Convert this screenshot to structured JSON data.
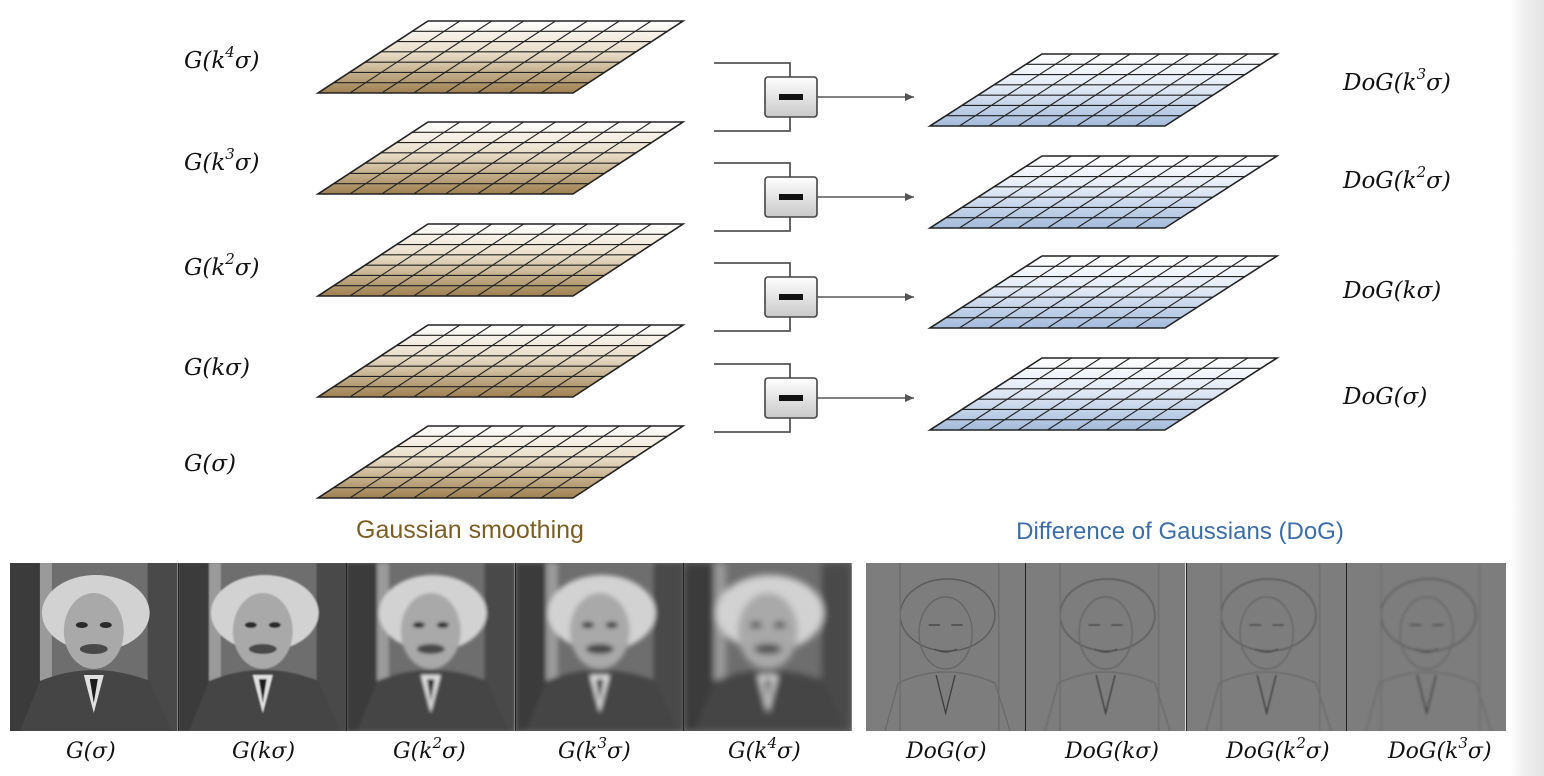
{
  "gaussian_levels": [
    {
      "base": "G(k",
      "sup": "4",
      "tail": "σ)"
    },
    {
      "base": "G(k",
      "sup": "3",
      "tail": "σ)"
    },
    {
      "base": "G(k",
      "sup": "2",
      "tail": "σ)"
    },
    {
      "base": "G(kσ)",
      "sup": "",
      "tail": ""
    },
    {
      "base": "G(σ)",
      "sup": "",
      "tail": ""
    }
  ],
  "dog_levels": [
    {
      "base": "DoG(k",
      "sup": "3",
      "tail": "σ)"
    },
    {
      "base": "DoG(k",
      "sup": "2",
      "tail": "σ)"
    },
    {
      "base": "DoG(kσ)",
      "sup": "",
      "tail": ""
    },
    {
      "base": "DoG(σ)",
      "sup": "",
      "tail": ""
    }
  ],
  "captions": {
    "gaussian": "Gaussian smoothing",
    "dog": "Difference of Gaussians (DoG)"
  },
  "bottom_gauss_labels": [
    {
      "base": "G(σ)",
      "sup": "",
      "tail": ""
    },
    {
      "base": "G(kσ)",
      "sup": "",
      "tail": ""
    },
    {
      "base": "G(k",
      "sup": "2",
      "tail": "σ)"
    },
    {
      "base": "G(k",
      "sup": "3",
      "tail": "σ)"
    },
    {
      "base": "G(k",
      "sup": "4",
      "tail": "σ)"
    }
  ],
  "bottom_dog_labels": [
    {
      "base": "DoG(σ)",
      "sup": "",
      "tail": ""
    },
    {
      "base": "DoG(kσ)",
      "sup": "",
      "tail": ""
    },
    {
      "base": "DoG(k",
      "sup": "2",
      "tail": "σ)"
    },
    {
      "base": "DoG(k",
      "sup": "3",
      "tail": "σ)"
    }
  ],
  "operator_symbol": "−",
  "colors": {
    "gaussian_tint": "#a68a57",
    "dog_tint": "#a9bedd",
    "gaussian_caption": "#7a5f25",
    "dog_caption": "#3d6ea5",
    "connector": "#555555"
  }
}
